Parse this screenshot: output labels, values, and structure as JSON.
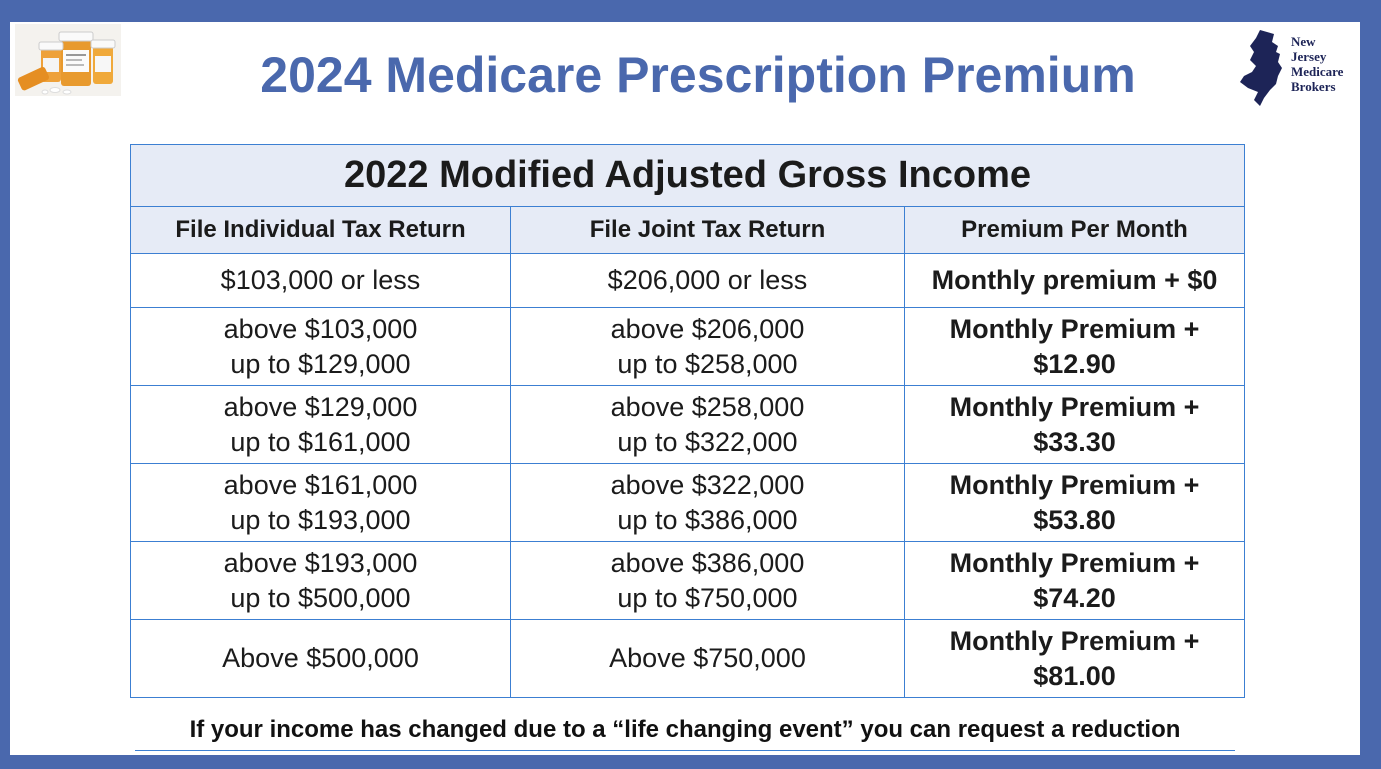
{
  "title": "2024 Medicare Prescription Premium",
  "logo": {
    "line1": "New",
    "line2": "Jersey",
    "line3": "Medicare",
    "line4": "Brokers"
  },
  "table": {
    "header": "2022 Modified Adjusted Gross Income",
    "columns": [
      "File Individual Tax Return",
      "File Joint Tax Return",
      "Premium Per Month"
    ],
    "rows": [
      {
        "individual": [
          "$103,000 or less"
        ],
        "joint": [
          "$206,000 or less"
        ],
        "premium": [
          "Monthly premium + $0"
        ]
      },
      {
        "individual": [
          "above $103,000",
          "up to $129,000"
        ],
        "joint": [
          "above $206,000",
          "up to $258,000"
        ],
        "premium": [
          "Monthly Premium +",
          "$12.90"
        ]
      },
      {
        "individual": [
          "above $129,000",
          "up to $161,000"
        ],
        "joint": [
          "above $258,000",
          "up to $322,000"
        ],
        "premium": [
          "Monthly Premium +",
          "$33.30"
        ]
      },
      {
        "individual": [
          "above $161,000",
          "up to $193,000"
        ],
        "joint": [
          "above $322,000",
          "up to $386,000"
        ],
        "premium": [
          "Monthly Premium +",
          "$53.80"
        ]
      },
      {
        "individual": [
          "above $193,000",
          "up to $500,000"
        ],
        "joint": [
          "above $386,000",
          "up to $750,000"
        ],
        "premium": [
          "Monthly Premium +",
          "$74.20"
        ]
      },
      {
        "individual": [
          "Above $500,000"
        ],
        "joint": [
          "Above $750,000"
        ],
        "premium": [
          "Monthly Premium +",
          "$81.00"
        ]
      }
    ]
  },
  "footnote": "If your income has changed due to a “life changing event” you can request a reduction",
  "colors": {
    "frame": "#4a68ad",
    "title": "#4a68ad",
    "header_fill": "#e6ebf6",
    "grid": "#3c7fd2",
    "logo_state": "#1d2457"
  }
}
